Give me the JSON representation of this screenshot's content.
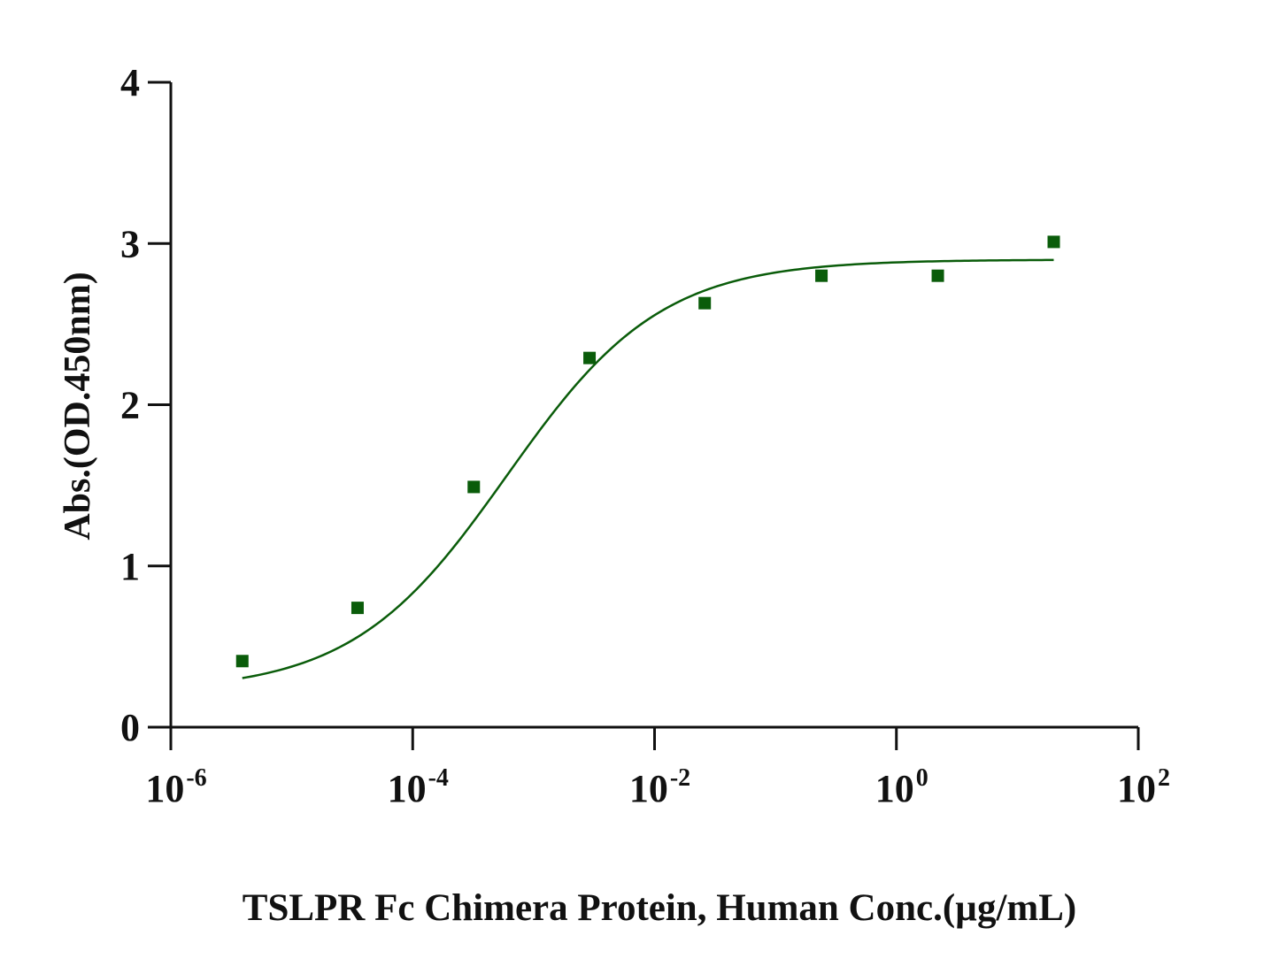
{
  "chart_data": {
    "type": "scatter",
    "title": "",
    "xlabel": "TSLPR Fc Chimera Protein, Human Conc.(µg/mL)",
    "ylabel": "Abs.(OD.450nm)",
    "x_scale": "log",
    "xlim": [
      1e-06,
      100
    ],
    "ylim": [
      0,
      4
    ],
    "x_ticks": [
      {
        "base": "10",
        "exp": "-6",
        "value": 1e-06
      },
      {
        "base": "10",
        "exp": "-4",
        "value": 0.0001
      },
      {
        "base": "10",
        "exp": "-2",
        "value": 0.01
      },
      {
        "base": "10",
        "exp": "0",
        "value": 1
      },
      {
        "base": "10",
        "exp": "2",
        "value": 100
      }
    ],
    "y_ticks": [
      "0",
      "1",
      "2",
      "3",
      "4"
    ],
    "grid": false,
    "legend": "none",
    "color": "#0a5c0a",
    "points": [
      {
        "x": 3.9e-06,
        "y": 0.41
      },
      {
        "x": 3.5e-05,
        "y": 0.74
      },
      {
        "x": 0.00032,
        "y": 1.49
      },
      {
        "x": 0.0029,
        "y": 2.29
      },
      {
        "x": 0.026,
        "y": 2.63
      },
      {
        "x": 0.24,
        "y": 2.8
      },
      {
        "x": 2.2,
        "y": 2.8
      },
      {
        "x": 20,
        "y": 3.01
      }
    ],
    "fit_curve": {
      "model": "4PL",
      "bottom": 0.22,
      "top": 2.9,
      "ec50": 0.0006,
      "hill": 0.68,
      "x_range": [
        3.9e-06,
        20
      ]
    }
  }
}
